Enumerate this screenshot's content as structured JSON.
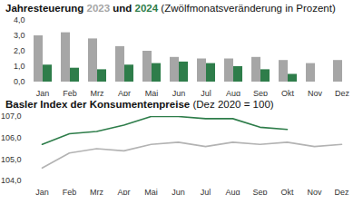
{
  "chart_data": [
    {
      "type": "bar",
      "title": "Jahresteuerung 2023 und 2024",
      "subtitle": "(Zwölfmonatsveränderung in Prozent)",
      "categories": [
        "Jan",
        "Feb",
        "Mrz",
        "Apr",
        "Mai",
        "Jun",
        "Jul",
        "Aug",
        "Sep",
        "Okt",
        "Nov",
        "Dez"
      ],
      "series": [
        {
          "name": "2023",
          "color": "#a6a6a6",
          "values": [
            3.0,
            3.2,
            2.8,
            2.3,
            2.0,
            1.6,
            1.5,
            1.5,
            1.6,
            1.4,
            1.2,
            1.4
          ]
        },
        {
          "name": "2024",
          "color": "#2e7d4a",
          "values": [
            1.1,
            0.9,
            0.8,
            1.1,
            1.2,
            1.3,
            1.2,
            1.0,
            0.8,
            0.5,
            null,
            null
          ]
        }
      ],
      "ylim": [
        0,
        4
      ],
      "yticks": [
        {
          "value": 0,
          "label": "0,0"
        },
        {
          "value": 1,
          "label": "1,0"
        },
        {
          "value": 2,
          "label": "2,0"
        },
        {
          "value": 3,
          "label": "3,0"
        },
        {
          "value": 4,
          "label": "4,0"
        }
      ],
      "grid": false
    },
    {
      "type": "line",
      "title": "Basler Index der Konsumentenpreise",
      "subtitle": "(Dez 2020 = 100)",
      "categories": [
        "Jan",
        "Feb",
        "Mrz",
        "Apr",
        "Mai",
        "Jun",
        "Jul",
        "Aug",
        "Sep",
        "Okt",
        "Nov",
        "Dez"
      ],
      "series": [
        {
          "name": "2023",
          "color": "#b3b3b3",
          "values": [
            104.6,
            105.3,
            105.5,
            105.4,
            105.7,
            105.8,
            105.6,
            105.8,
            105.7,
            105.8,
            105.6,
            105.7
          ]
        },
        {
          "name": "2024",
          "color": "#2e7d4a",
          "values": [
            105.7,
            106.2,
            106.3,
            106.6,
            107.0,
            107.0,
            106.9,
            106.9,
            106.5,
            106.4,
            null,
            null
          ]
        }
      ],
      "ylim": [
        104,
        107
      ],
      "yticks": [
        {
          "value": 104,
          "label": "104,0"
        },
        {
          "value": 105,
          "label": "105,0"
        },
        {
          "value": 106,
          "label": "106,0"
        },
        {
          "value": 107,
          "label": "107,0"
        }
      ],
      "grid": false
    }
  ]
}
